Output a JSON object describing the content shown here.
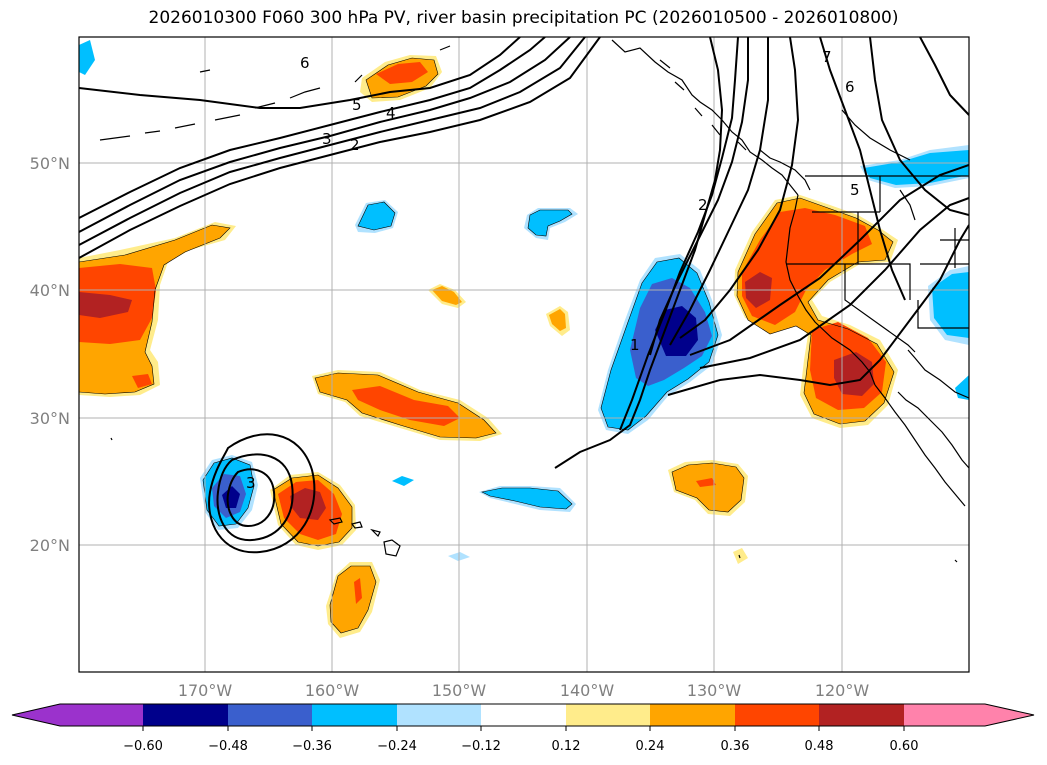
{
  "title": "2026010300 F060 300 hPa PV, river basin precipitation PC (2026010500 - 2026010800)",
  "lat_labels": [
    "50°N",
    "40°N",
    "30°N",
    "20°N"
  ],
  "lon_labels": [
    "170°W",
    "160°W",
    "150°W",
    "140°W",
    "130°W",
    "120°W"
  ],
  "contour_labels": [
    "6",
    "5",
    "4",
    "3",
    "2",
    "7",
    "6",
    "5",
    "2",
    "1",
    "3"
  ],
  "colorbar": {
    "colors": [
      "#9b32cc",
      "#00008b",
      "#3a5fcd",
      "#00bfff",
      "#b0e2ff",
      "#ffffff",
      "#ffec8b",
      "#ffa500",
      "#ff4500",
      "#b22222",
      "#ff82ab"
    ],
    "ticks": [
      "−0.60",
      "−0.48",
      "−0.36",
      "−0.24",
      "−0.12",
      "0.12",
      "0.24",
      "0.36",
      "0.48",
      "0.60"
    ]
  }
}
